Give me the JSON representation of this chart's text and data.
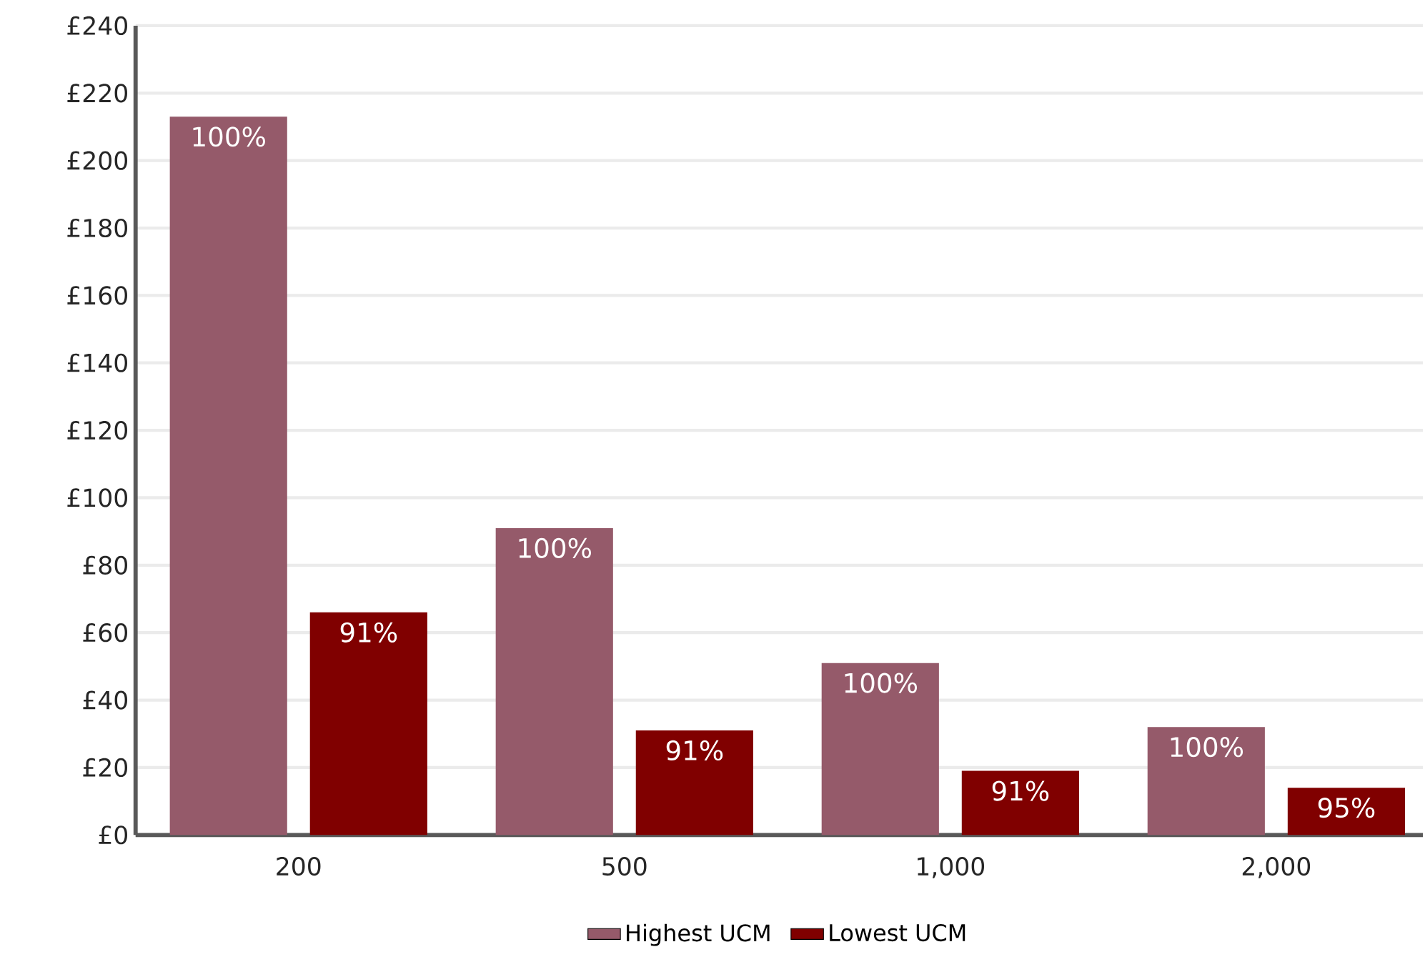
{
  "chart_data": {
    "type": "bar",
    "categories": [
      "200",
      "500",
      "1,000",
      "2,000"
    ],
    "series": [
      {
        "name": "Highest UCM",
        "color": "#955a6a",
        "values": [
          213,
          91,
          51,
          32
        ]
      },
      {
        "name": "Lowest UCM",
        "color": "#800000",
        "values": [
          66,
          31,
          19,
          14
        ]
      }
    ],
    "annotations": [
      "100%",
      "91%",
      "100%",
      "91%",
      "100%",
      "91%",
      "100%",
      "95%"
    ],
    "ylim": [
      0,
      240
    ],
    "yticks": [
      {
        "value": 0,
        "label": "£0"
      },
      {
        "value": 20,
        "label": "£20"
      },
      {
        "value": 40,
        "label": "£40"
      },
      {
        "value": 60,
        "label": "£60"
      },
      {
        "value": 80,
        "label": "£80"
      },
      {
        "value": 100,
        "label": "£100"
      },
      {
        "value": 120,
        "label": "£120"
      },
      {
        "value": 140,
        "label": "£140"
      },
      {
        "value": 160,
        "label": "£160"
      },
      {
        "value": 180,
        "label": "£180"
      },
      {
        "value": 200,
        "label": "£200"
      },
      {
        "value": 220,
        "label": "£220"
      },
      {
        "value": 240,
        "label": "£240"
      }
    ],
    "grid": "y",
    "legend": "bottom"
  }
}
